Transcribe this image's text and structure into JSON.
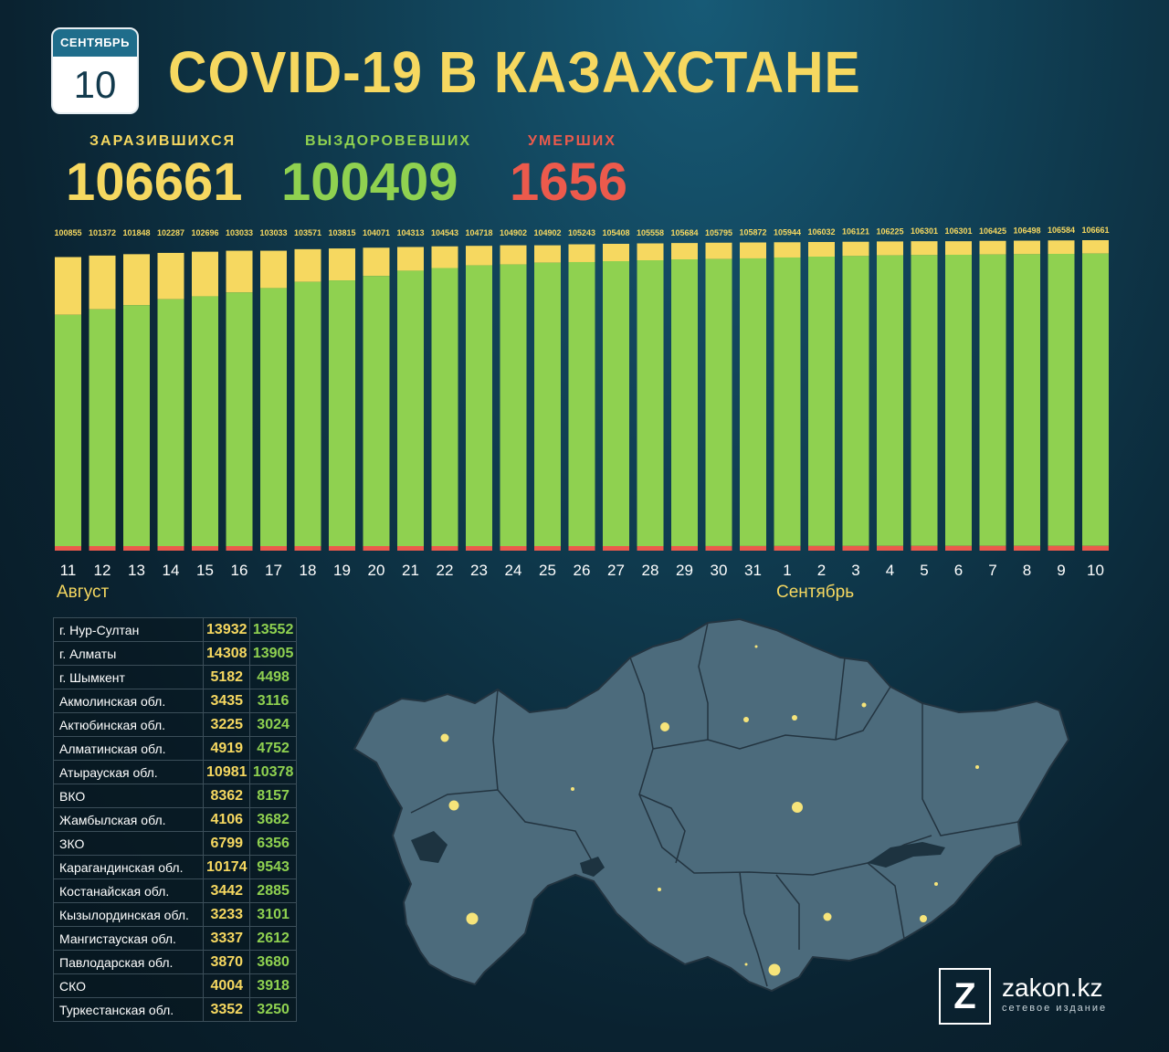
{
  "header": {
    "month": "СЕНТЯБРЬ",
    "day": "10",
    "title": "COVID-19 В КАЗАХСТАНЕ"
  },
  "stats": {
    "infected": {
      "label": "ЗАРАЗИВШИХСЯ",
      "value": "106661",
      "color": "#f6d860"
    },
    "recovered": {
      "label": "ВЫЗДОРОВЕВШИХ",
      "value": "100409",
      "color": "#8fd150"
    },
    "deaths": {
      "label": "УМЕРШИХ",
      "value": "1656",
      "color": "#ec5a4c"
    }
  },
  "chart_data": {
    "type": "bar",
    "categories": [
      "11",
      "12",
      "13",
      "14",
      "15",
      "16",
      "17",
      "18",
      "19",
      "20",
      "21",
      "22",
      "23",
      "24",
      "25",
      "26",
      "27",
      "28",
      "29",
      "30",
      "31",
      "1",
      "2",
      "3",
      "4",
      "5",
      "6",
      "7",
      "8",
      "9",
      "10"
    ],
    "series": [
      {
        "name": "Умершие",
        "color": "#ec5a4c",
        "values": [
          1269,
          1302,
          1335,
          1364,
          1385,
          1399,
          1415,
          1432,
          1445,
          1458,
          1475,
          1490,
          1505,
          1519,
          1524,
          1535,
          1547,
          1559,
          1570,
          1583,
          1596,
          1606,
          1614,
          1624,
          1634,
          1639,
          1643,
          1647,
          1651,
          1653,
          1656
        ]
      },
      {
        "name": "Выздоровевшие",
        "color": "#8fd150",
        "values": [
          79760,
          81600,
          83000,
          85000,
          86000,
          87300,
          88800,
          90900,
          91400,
          92900,
          94700,
          95600,
          96500,
          96800,
          97400,
          97600,
          97900,
          98200,
          98500,
          98600,
          98800,
          99100,
          99400,
          99600,
          99800,
          99900,
          100000,
          100100,
          100200,
          100300,
          100409
        ]
      },
      {
        "name": "Заразившиеся",
        "color": "#f6d860",
        "values": [
          100855,
          101372,
          101848,
          102287,
          102696,
          103033,
          103033,
          103571,
          103815,
          104071,
          104313,
          104543,
          104718,
          104902,
          104902,
          105243,
          105408,
          105558,
          105684,
          105795,
          105872,
          105944,
          106032,
          106121,
          106225,
          106301,
          106301,
          106425,
          106498,
          106584,
          106661
        ]
      }
    ],
    "data_labels": [
      "100855",
      "101372",
      "101848",
      "102287",
      "102696",
      "103033",
      "103033",
      "103571",
      "103815",
      "104071",
      "104313",
      "104543",
      "104718",
      "104902",
      "104902",
      "105243",
      "105408",
      "105558",
      "105684",
      "105795",
      "105872",
      "105944",
      "106032",
      "106121",
      "106225",
      "106301",
      "106301",
      "106425",
      "106498",
      "106584",
      "106661"
    ],
    "month_labels": {
      "august": "Август",
      "september": "Сентябрь"
    },
    "ylim": [
      0,
      106661
    ],
    "grid": false
  },
  "regions": [
    {
      "name": "г. Нур-Султан",
      "infected": "13932",
      "recovered": "13552"
    },
    {
      "name": "г. Алматы",
      "infected": "14308",
      "recovered": "13905"
    },
    {
      "name": "г. Шымкент",
      "infected": "5182",
      "recovered": "4498"
    },
    {
      "name": "Акмолинская обл.",
      "infected": "3435",
      "recovered": "3116"
    },
    {
      "name": "Актюбинская обл.",
      "infected": "3225",
      "recovered": "3024"
    },
    {
      "name": "Алматинская обл.",
      "infected": "4919",
      "recovered": "4752"
    },
    {
      "name": "Атырауская обл.",
      "infected": "10981",
      "recovered": "10378"
    },
    {
      "name": "ВКО",
      "infected": "8362",
      "recovered": "8157"
    },
    {
      "name": "Жамбылская обл.",
      "infected": "4106",
      "recovered": "3682"
    },
    {
      "name": "ЗКО",
      "infected": "6799",
      "recovered": "6356"
    },
    {
      "name": "Карагандинская обл.",
      "infected": "10174",
      "recovered": "9543"
    },
    {
      "name": "Костанайская обл.",
      "infected": "3442",
      "recovered": "2885"
    },
    {
      "name": "Кызылординская обл.",
      "infected": "3233",
      "recovered": "3101"
    },
    {
      "name": "Мангистауская обл.",
      "infected": "3337",
      "recovered": "2612"
    },
    {
      "name": "Павлодарская обл.",
      "infected": "3870",
      "recovered": "3680"
    },
    {
      "name": "СКО",
      "infected": "4004",
      "recovered": "3918"
    },
    {
      "name": "Туркестанская обл.",
      "infected": "3352",
      "recovered": "3250"
    }
  ],
  "logo": {
    "name": "zakon.kz",
    "subtitle": "сетевое издание",
    "letter": "Z"
  }
}
